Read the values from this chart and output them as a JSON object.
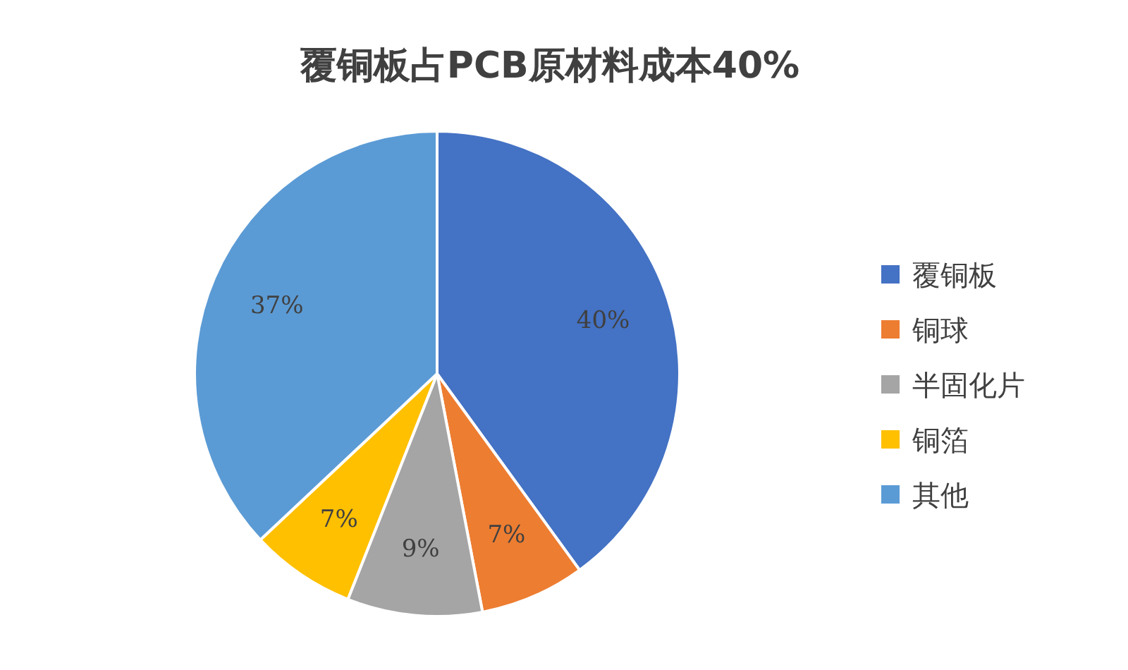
{
  "chart_data": {
    "type": "pie",
    "title": "覆铜板占PCB原材料成本40%",
    "categories": [
      "覆铜板",
      "铜球",
      "半固化片",
      "铜箔",
      "其他"
    ],
    "values": [
      40,
      7,
      9,
      7,
      37
    ],
    "value_labels": [
      "40%",
      "7%",
      "9%",
      "7%",
      "37%"
    ],
    "colors": [
      "#4472c4",
      "#ed7d31",
      "#a5a5a5",
      "#ffc000",
      "#5b9bd5"
    ],
    "legend": "right"
  }
}
